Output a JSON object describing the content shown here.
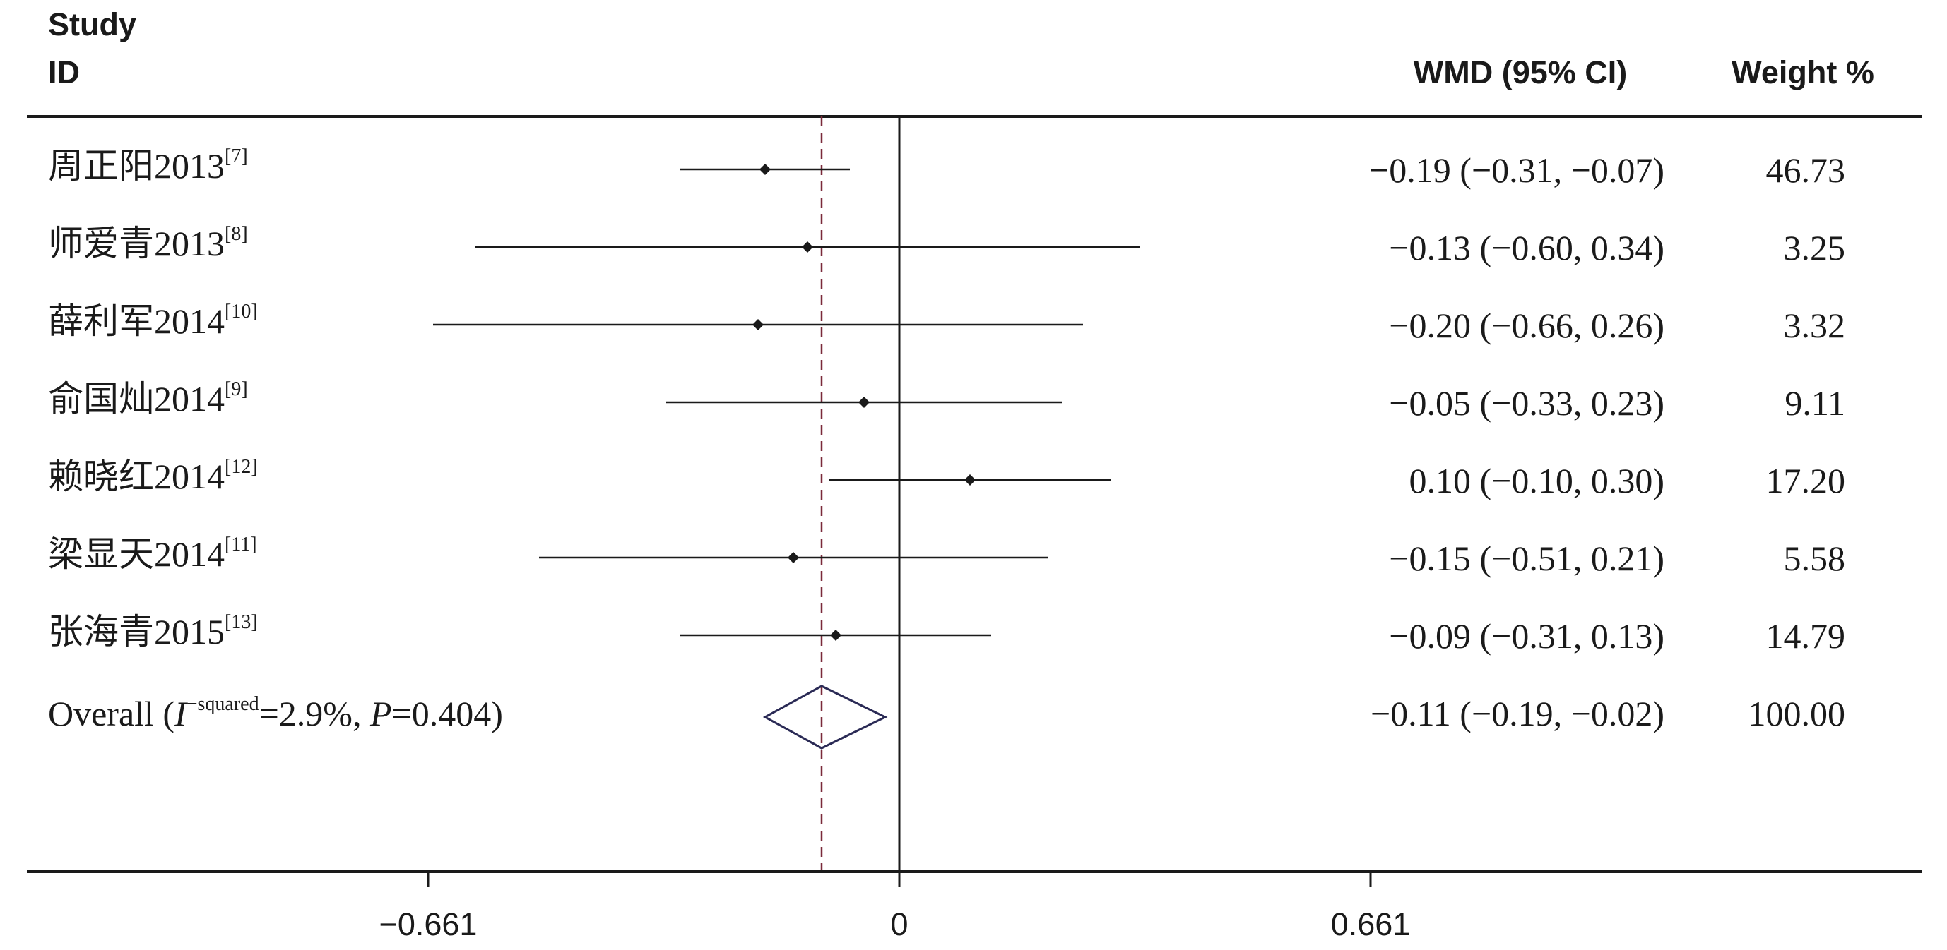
{
  "header": {
    "study_label_line1": "Study",
    "study_label_line2": "ID",
    "effect_label": "WMD (95% CI)",
    "weight_label": "Weight %"
  },
  "colors": {
    "ink": "#1a1a1a",
    "reference_line": "#7a2a3a",
    "diamond": "#2a2a55"
  },
  "chart_data": {
    "type": "forest",
    "x_axis": {
      "min": -0.661,
      "max": 1.42,
      "ticks": [
        -0.661,
        0,
        0.661
      ],
      "tick_labels": [
        "−0.661",
        "0",
        "0.661"
      ]
    },
    "null_line": 0,
    "pooled_estimate": -0.11,
    "studies": [
      {
        "name": "周正阳2013",
        "ref": "[7]",
        "wmd": -0.19,
        "lower": -0.31,
        "upper": -0.07,
        "ci_text": "−0.19 (−0.31, −0.07)",
        "weight": "46.73"
      },
      {
        "name": "师爱青2013",
        "ref": "[8]",
        "wmd": -0.13,
        "lower": -0.6,
        "upper": 0.34,
        "ci_text": "−0.13 (−0.60, 0.34)",
        "weight": "3.25"
      },
      {
        "name": "薛利军2014",
        "ref": "[10]",
        "wmd": -0.2,
        "lower": -0.66,
        "upper": 0.26,
        "ci_text": "−0.20 (−0.66, 0.26)",
        "weight": "3.32"
      },
      {
        "name": "俞国灿2014",
        "ref": "[9]",
        "wmd": -0.05,
        "lower": -0.33,
        "upper": 0.23,
        "ci_text": "−0.05 (−0.33, 0.23)",
        "weight": "9.11"
      },
      {
        "name": "赖晓红2014",
        "ref": "[12]",
        "wmd": 0.1,
        "lower": -0.1,
        "upper": 0.3,
        "ci_text": "0.10 (−0.10, 0.30)",
        "weight": "17.20"
      },
      {
        "name": "梁显天2014",
        "ref": "[11]",
        "wmd": -0.15,
        "lower": -0.51,
        "upper": 0.21,
        "ci_text": "−0.15 (−0.51, 0.21)",
        "weight": "5.58"
      },
      {
        "name": "张海青2015",
        "ref": "[13]",
        "wmd": -0.09,
        "lower": -0.31,
        "upper": 0.13,
        "ci_text": "−0.09 (−0.31, 0.13)",
        "weight": "14.79"
      }
    ],
    "overall": {
      "label_prefix": "Overall  (",
      "i_symbol": "I",
      "i_superscript": "−squared",
      "i_value": "=2.9%, ",
      "p_symbol": "P",
      "p_value": "=0.404)",
      "wmd": -0.11,
      "lower": -0.19,
      "upper": -0.02,
      "ci_text": "−0.11 (−0.19, −0.02)",
      "weight": "100.00"
    }
  }
}
